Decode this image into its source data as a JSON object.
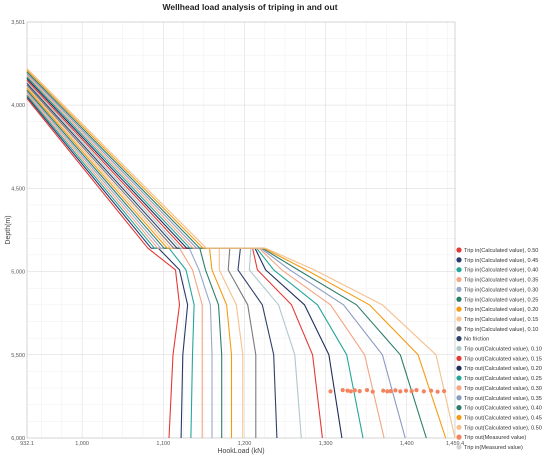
{
  "chart_data": {
    "type": "line",
    "title": "Wellhead load analysis of triping in and out",
    "xlabel": "HookLoad  (kN)",
    "ylabel": "Depth(m)",
    "xlim": [
      932.1,
      1459.4
    ],
    "ylim": [
      3501,
      6000
    ],
    "y_inverted": true,
    "grid": true,
    "legend_position": "right",
    "x_ticks": [
      "932.1",
      "1,000",
      "1,100",
      "1,200",
      "1,300",
      "1,400",
      "1,459.4"
    ],
    "y_ticks": [
      "3,501",
      "4,000",
      "4,500",
      "5,000",
      "5,500",
      "6,000"
    ],
    "x_tick_values": [
      932.1,
      1000,
      1100,
      1200,
      1300,
      1400,
      1459.4
    ],
    "y_tick_values": [
      3501,
      4000,
      4500,
      5000,
      5500,
      6000
    ],
    "series": [
      {
        "name": "Trip in(Calculated value),  0.50",
        "color": "#e53935",
        "points": [
          [
            932,
            3960
          ],
          [
            1081,
            4860
          ],
          [
            1081,
            4860
          ],
          [
            1115,
            4990
          ],
          [
            1120,
            5200
          ],
          [
            1112,
            5500
          ],
          [
            1107,
            6000
          ]
        ]
      },
      {
        "name": "Trip in(Calculated value),  0.45",
        "color": "#263a6b",
        "points": [
          [
            932,
            3950
          ],
          [
            1085,
            4860
          ],
          [
            1094,
            4860
          ],
          [
            1120,
            4990
          ],
          [
            1130,
            5200
          ],
          [
            1124,
            5500
          ],
          [
            1122,
            6000
          ]
        ]
      },
      {
        "name": "Trip in(Calculated value),  0.40",
        "color": "#26a69a",
        "points": [
          [
            932,
            3940
          ],
          [
            1089,
            4860
          ],
          [
            1107,
            4860
          ],
          [
            1128,
            4990
          ],
          [
            1138,
            5200
          ],
          [
            1136,
            5500
          ],
          [
            1134,
            6000
          ]
        ]
      },
      {
        "name": "Trip in(Calculated value),  0.35",
        "color": "#f4a582",
        "points": [
          [
            932,
            3930
          ],
          [
            1093,
            4860
          ],
          [
            1120,
            4860
          ],
          [
            1136,
            4990
          ],
          [
            1148,
            5200
          ],
          [
            1148,
            5500
          ],
          [
            1148,
            6000
          ]
        ]
      },
      {
        "name": "Trip in(Calculated value),  0.30",
        "color": "#9aa8c8",
        "points": [
          [
            932,
            3920
          ],
          [
            1097,
            4860
          ],
          [
            1132,
            4860
          ],
          [
            1144,
            4990
          ],
          [
            1158,
            5200
          ],
          [
            1160,
            5500
          ],
          [
            1160,
            6000
          ]
        ]
      },
      {
        "name": "Trip in(Calculated value),  0.25",
        "color": "#2e7d6b",
        "points": [
          [
            932,
            3910
          ],
          [
            1101,
            4860
          ],
          [
            1145,
            4860
          ],
          [
            1152,
            4990
          ],
          [
            1168,
            5200
          ],
          [
            1172,
            5500
          ],
          [
            1172,
            6000
          ]
        ]
      },
      {
        "name": "Trip in(Calculated value),  0.20",
        "color": "#f39c12",
        "points": [
          [
            932,
            3900
          ],
          [
            1105,
            4860
          ],
          [
            1157,
            4860
          ],
          [
            1160,
            4990
          ],
          [
            1178,
            5200
          ],
          [
            1184,
            5500
          ],
          [
            1184,
            6000
          ]
        ]
      },
      {
        "name": "Trip in(Calculated value),  0.15",
        "color": "#f8c08a",
        "points": [
          [
            932,
            3890
          ],
          [
            1109,
            4860
          ],
          [
            1169,
            4860
          ],
          [
            1169,
            4990
          ],
          [
            1190,
            5200
          ],
          [
            1198,
            5500
          ],
          [
            1198,
            6000
          ]
        ]
      },
      {
        "name": "Trip in(Calculated value),  0.10",
        "color": "#7a7a7a",
        "points": [
          [
            932,
            3880
          ],
          [
            1113,
            4860
          ],
          [
            1182,
            4860
          ],
          [
            1180,
            4990
          ],
          [
            1204,
            5200
          ],
          [
            1214,
            5500
          ],
          [
            1214,
            6000
          ]
        ]
      },
      {
        "name": "No friction",
        "color": "#2f4268",
        "points": [
          [
            932,
            3870
          ],
          [
            1117,
            4860
          ],
          [
            1195,
            4860
          ],
          [
            1192,
            4990
          ],
          [
            1222,
            5200
          ],
          [
            1236,
            5500
          ],
          [
            1240,
            6000
          ]
        ]
      },
      {
        "name": "Trip out(Calculated value),  0.10",
        "color": "#b0c8cc",
        "points": [
          [
            932,
            3860
          ],
          [
            1121,
            4860
          ],
          [
            1208,
            4860
          ],
          [
            1206,
            4990
          ],
          [
            1242,
            5200
          ],
          [
            1262,
            5500
          ],
          [
            1270,
            6000
          ]
        ]
      },
      {
        "name": "Trip out(Calculated value),  0.15",
        "color": "#e53935",
        "points": [
          [
            932,
            3850
          ],
          [
            1125,
            4860
          ],
          [
            1210,
            4860
          ],
          [
            1216,
            4990
          ],
          [
            1258,
            5200
          ],
          [
            1284,
            5500
          ],
          [
            1296,
            6000
          ]
        ]
      },
      {
        "name": "Trip out(Calculated value),  0.20",
        "color": "#1f2f5a",
        "points": [
          [
            932,
            3840
          ],
          [
            1129,
            4860
          ],
          [
            1213,
            4860
          ],
          [
            1226,
            4990
          ],
          [
            1274,
            5200
          ],
          [
            1304,
            5500
          ],
          [
            1320,
            6000
          ]
        ]
      },
      {
        "name": "Trip out(Calculated value),  0.25",
        "color": "#26a69a",
        "points": [
          [
            932,
            3830
          ],
          [
            1133,
            4860
          ],
          [
            1215,
            4860
          ],
          [
            1236,
            4990
          ],
          [
            1290,
            5200
          ],
          [
            1326,
            5500
          ],
          [
            1346,
            6000
          ]
        ]
      },
      {
        "name": "Trip out(Calculated value),  0.30",
        "color": "#f4a582",
        "points": [
          [
            932,
            3820
          ],
          [
            1137,
            4860
          ],
          [
            1218,
            4860
          ],
          [
            1246,
            4990
          ],
          [
            1306,
            5200
          ],
          [
            1348,
            5500
          ],
          [
            1372,
            6000
          ]
        ]
      },
      {
        "name": "Trip out(Calculated value),  0.35",
        "color": "#8a9bc2",
        "points": [
          [
            932,
            3810
          ],
          [
            1141,
            4860
          ],
          [
            1220,
            4860
          ],
          [
            1256,
            4990
          ],
          [
            1322,
            5200
          ],
          [
            1370,
            5500
          ],
          [
            1398,
            6000
          ]
        ]
      },
      {
        "name": "Trip out(Calculated value),  0.40",
        "color": "#2e7d6b",
        "points": [
          [
            932,
            3800
          ],
          [
            1145,
            4860
          ],
          [
            1222,
            4860
          ],
          [
            1266,
            4990
          ],
          [
            1338,
            5200
          ],
          [
            1392,
            5500
          ],
          [
            1424,
            6000
          ]
        ]
      },
      {
        "name": "Trip out(Calculated value),  0.45",
        "color": "#f39c12",
        "points": [
          [
            932,
            3790
          ],
          [
            1149,
            4860
          ],
          [
            1224,
            4860
          ],
          [
            1276,
            4990
          ],
          [
            1354,
            5200
          ],
          [
            1414,
            5500
          ],
          [
            1448,
            6000
          ]
        ]
      },
      {
        "name": "Trip out(Calculated value),  0.50",
        "color": "#f5c08e",
        "points": [
          [
            932,
            3780
          ],
          [
            1153,
            4860
          ],
          [
            1226,
            4860
          ],
          [
            1286,
            4990
          ],
          [
            1370,
            5200
          ],
          [
            1436,
            5500
          ],
          [
            1470,
            6000
          ]
        ]
      }
    ],
    "measured": [
      {
        "name": "Trip out(Measured value)",
        "color": "#f4845f",
        "points": [
          [
            1306,
            5720
          ],
          [
            1321,
            5712
          ],
          [
            1327,
            5716
          ],
          [
            1331,
            5720
          ],
          [
            1336,
            5714
          ],
          [
            1342,
            5718
          ],
          [
            1351,
            5712
          ],
          [
            1358,
            5722
          ],
          [
            1371,
            5716
          ],
          [
            1376,
            5720
          ],
          [
            1380,
            5718
          ],
          [
            1386,
            5714
          ],
          [
            1392,
            5720
          ],
          [
            1399,
            5716
          ],
          [
            1406,
            5718
          ],
          [
            1412,
            5712
          ],
          [
            1421,
            5720
          ],
          [
            1430,
            5716
          ],
          [
            1438,
            5722
          ],
          [
            1446,
            5718
          ]
        ]
      },
      {
        "name": "Trip in(Measured value)",
        "color": "#d3d3d3",
        "points": []
      }
    ]
  }
}
